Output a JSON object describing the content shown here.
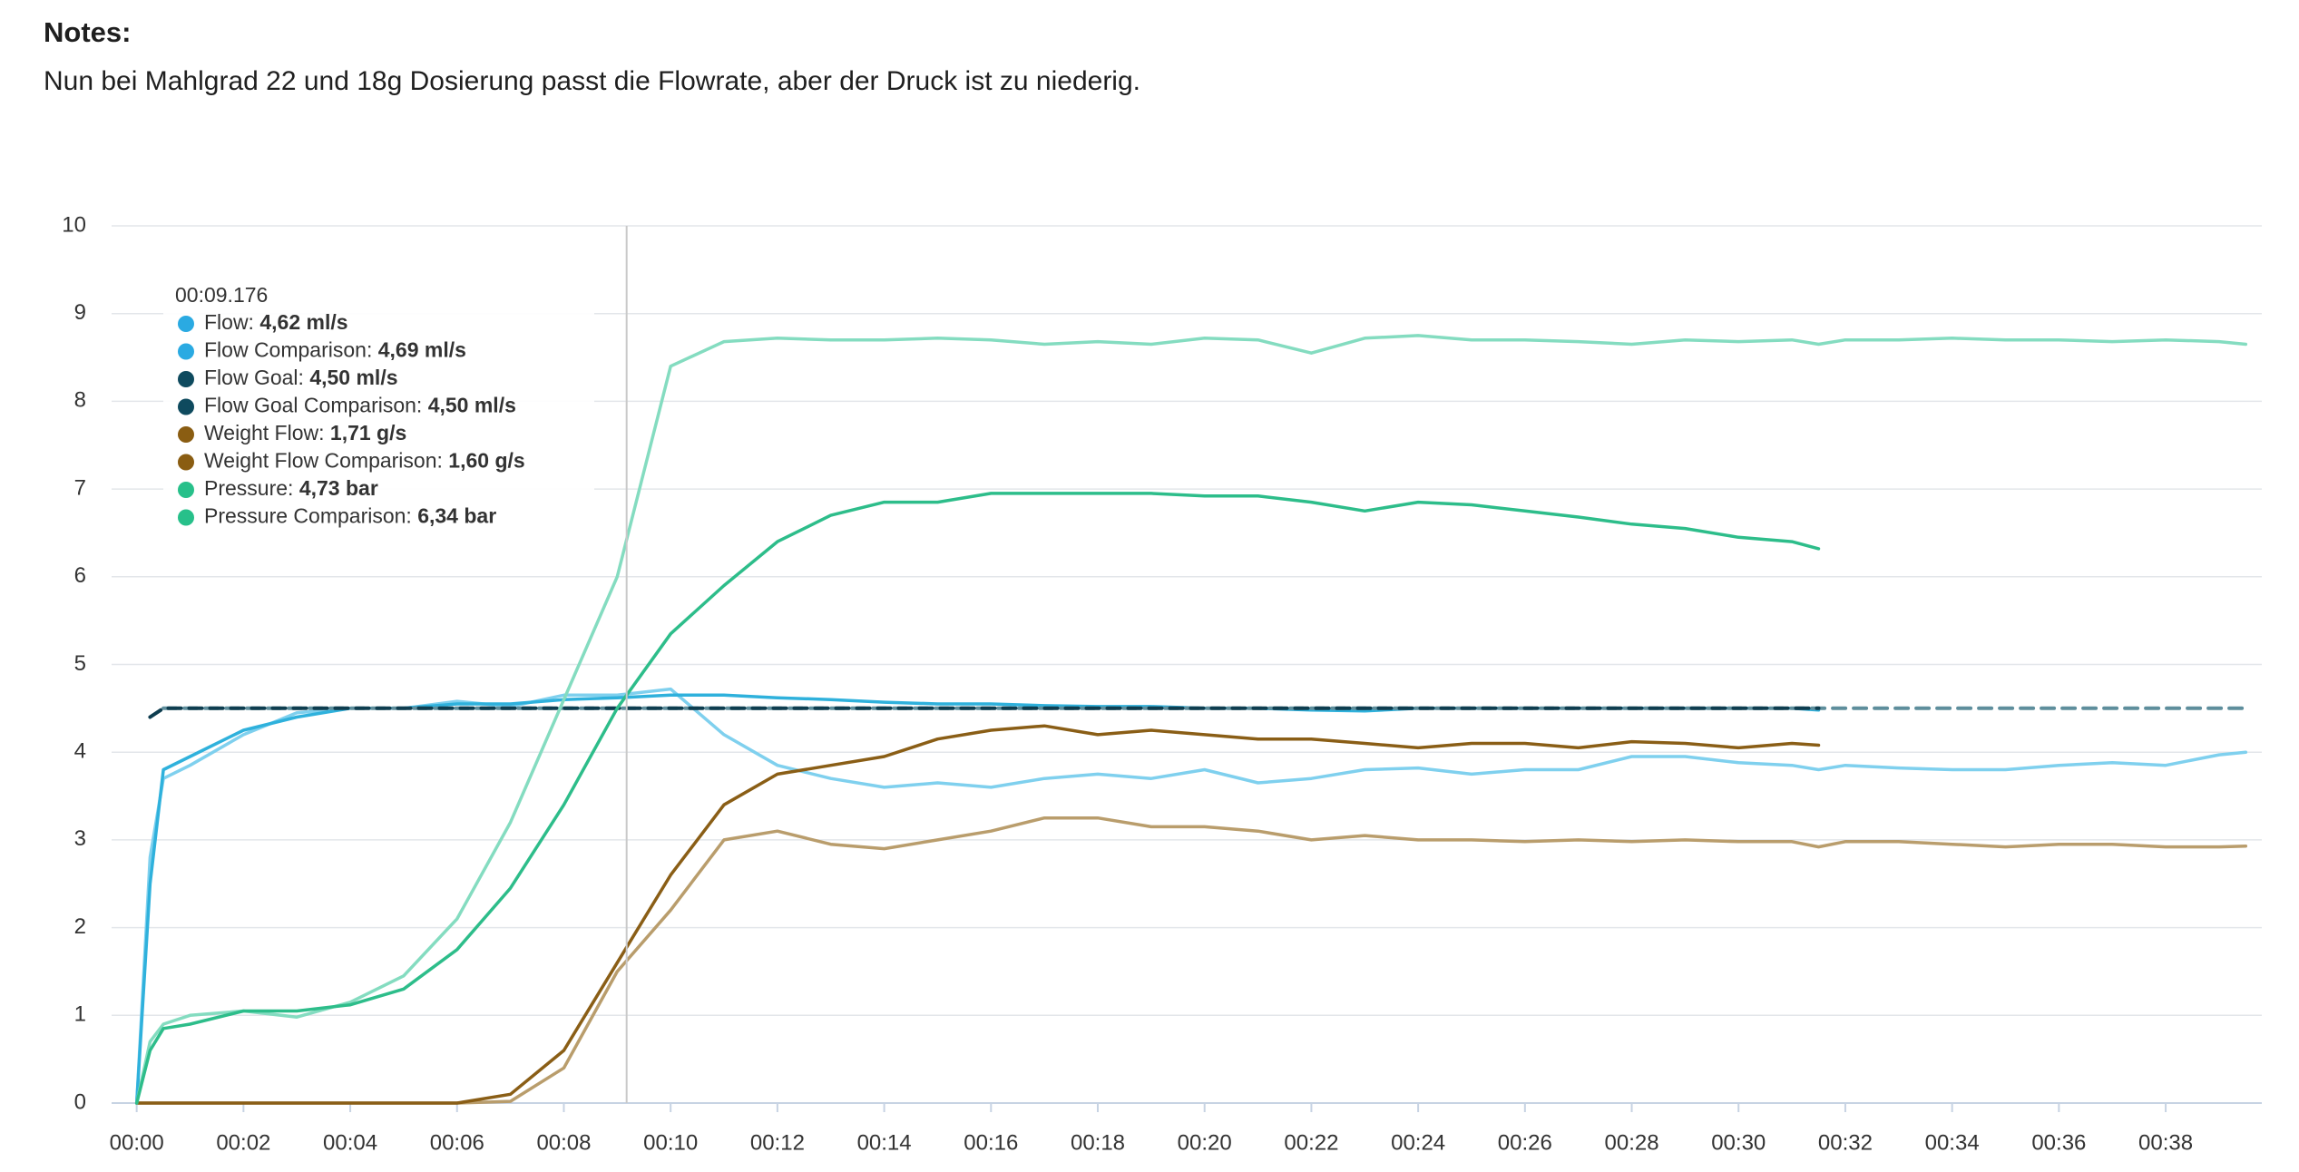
{
  "notes": {
    "title": "Notes:",
    "text": "Nun bei Mahlgrad 22 und 18g Dosierung passt die Flowrate, aber der Druck ist zu niederig."
  },
  "chart_data": {
    "type": "line",
    "x": [
      0,
      0.25,
      0.5,
      1,
      2,
      3,
      4,
      5,
      6,
      7,
      8,
      9,
      10,
      11,
      12,
      13,
      14,
      15,
      16,
      17,
      18,
      19,
      20,
      21,
      22,
      23,
      24,
      25,
      26,
      27,
      28,
      29,
      30,
      31,
      31.5,
      32,
      33,
      34,
      35,
      36,
      37,
      38,
      39,
      39.5
    ],
    "xlim": [
      -0.47,
      39.8
    ],
    "xticks": [
      {
        "value": 0,
        "label": "00:00"
      },
      {
        "value": 2,
        "label": "00:02"
      },
      {
        "value": 4,
        "label": "00:04"
      },
      {
        "value": 6,
        "label": "00:06"
      },
      {
        "value": 8,
        "label": "00:08"
      },
      {
        "value": 10,
        "label": "00:10"
      },
      {
        "value": 12,
        "label": "00:12"
      },
      {
        "value": 14,
        "label": "00:14"
      },
      {
        "value": 16,
        "label": "00:16"
      },
      {
        "value": 18,
        "label": "00:18"
      },
      {
        "value": 20,
        "label": "00:20"
      },
      {
        "value": 22,
        "label": "00:22"
      },
      {
        "value": 24,
        "label": "00:24"
      },
      {
        "value": 26,
        "label": "00:26"
      },
      {
        "value": 28,
        "label": "00:28"
      },
      {
        "value": 30,
        "label": "00:30"
      },
      {
        "value": 32,
        "label": "00:32"
      },
      {
        "value": 34,
        "label": "00:34"
      },
      {
        "value": 36,
        "label": "00:36"
      },
      {
        "value": 38,
        "label": "00:38"
      }
    ],
    "ylim": [
      0,
      10
    ],
    "yticks": [
      0,
      1,
      2,
      3,
      4,
      5,
      6,
      7,
      8,
      9,
      10
    ],
    "grid": true,
    "cursor": 9.176,
    "series": [
      {
        "name": "Flow Comparison",
        "color": "#7fd0ee",
        "dash": false,
        "values": [
          0,
          2.8,
          3.7,
          3.85,
          4.2,
          4.45,
          4.5,
          4.5,
          4.58,
          4.52,
          4.65,
          4.65,
          4.72,
          4.2,
          3.85,
          3.7,
          3.6,
          3.65,
          3.6,
          3.7,
          3.75,
          3.7,
          3.8,
          3.65,
          3.7,
          3.8,
          3.82,
          3.75,
          3.8,
          3.8,
          3.95,
          3.95,
          3.88,
          3.85,
          3.8,
          3.85,
          3.82,
          3.8,
          3.8,
          3.85,
          3.88,
          3.85,
          3.97,
          4.0
        ]
      },
      {
        "name": "Flow",
        "color": "#2fb1dc",
        "dash": false,
        "values": [
          0,
          2.5,
          3.8,
          3.95,
          4.25,
          4.4,
          4.5,
          4.5,
          4.55,
          4.55,
          4.6,
          4.62,
          4.65,
          4.65,
          4.62,
          4.6,
          4.57,
          4.55,
          4.55,
          4.53,
          4.52,
          4.52,
          4.5,
          4.5,
          4.48,
          4.47,
          4.5,
          4.5,
          4.5,
          4.5,
          4.5,
          4.5,
          4.5,
          4.5,
          4.48,
          null,
          null,
          null,
          null,
          null,
          null,
          null,
          null,
          null
        ]
      },
      {
        "name": "Flow Goal Comparison",
        "color": "#5e8e9c",
        "dash": true,
        "values": [
          null,
          null,
          4.5,
          4.5,
          4.5,
          4.5,
          4.5,
          4.5,
          4.5,
          4.5,
          4.5,
          4.5,
          4.5,
          4.5,
          4.5,
          4.5,
          4.5,
          4.5,
          4.5,
          4.5,
          4.5,
          4.5,
          4.5,
          4.5,
          4.5,
          4.5,
          4.5,
          4.5,
          4.5,
          4.5,
          4.5,
          4.5,
          4.5,
          4.5,
          4.5,
          4.5,
          4.5,
          4.5,
          4.5,
          4.5,
          4.5,
          4.5,
          4.5,
          4.5
        ]
      },
      {
        "name": "Flow Goal",
        "color": "#0e3d4f",
        "dash": true,
        "values": [
          null,
          4.4,
          4.5,
          4.5,
          4.5,
          4.5,
          4.5,
          4.5,
          4.5,
          4.5,
          4.5,
          4.5,
          4.5,
          4.5,
          4.5,
          4.5,
          4.5,
          4.5,
          4.5,
          4.5,
          4.5,
          4.5,
          4.5,
          4.5,
          4.5,
          4.5,
          4.5,
          4.5,
          4.5,
          4.5,
          4.5,
          4.5,
          4.5,
          4.5,
          4.5,
          null,
          null,
          null,
          null,
          null,
          null,
          null,
          null,
          null
        ]
      },
      {
        "name": "Weight Flow Comparison",
        "color": "#b99d6c",
        "dash": false,
        "values": [
          0,
          0,
          0,
          0,
          0,
          0,
          0,
          0,
          0,
          0.02,
          0.4,
          1.5,
          2.2,
          3.0,
          3.1,
          2.95,
          2.9,
          3.0,
          3.1,
          3.25,
          3.25,
          3.15,
          3.15,
          3.1,
          3.0,
          3.05,
          3.0,
          3.0,
          2.98,
          3.0,
          2.98,
          3.0,
          2.98,
          2.98,
          2.92,
          2.98,
          2.98,
          2.95,
          2.92,
          2.95,
          2.95,
          2.92,
          2.92,
          2.93
        ]
      },
      {
        "name": "Weight Flow",
        "color": "#8a5e16",
        "dash": false,
        "values": [
          0,
          0,
          0,
          0,
          0,
          0,
          0,
          0,
          0,
          0.1,
          0.6,
          1.6,
          2.6,
          3.4,
          3.75,
          3.85,
          3.95,
          4.15,
          4.25,
          4.3,
          4.2,
          4.25,
          4.2,
          4.15,
          4.15,
          4.1,
          4.05,
          4.1,
          4.1,
          4.05,
          4.12,
          4.1,
          4.05,
          4.1,
          4.08,
          null,
          null,
          null,
          null,
          null,
          null,
          null,
          null,
          null
        ]
      },
      {
        "name": "Pressure Comparison",
        "color": "#84dcc0",
        "dash": false,
        "values": [
          0,
          0.7,
          0.9,
          1.0,
          1.05,
          0.98,
          1.15,
          1.45,
          2.1,
          3.2,
          4.6,
          6.0,
          8.4,
          8.68,
          8.72,
          8.7,
          8.7,
          8.72,
          8.7,
          8.65,
          8.68,
          8.65,
          8.72,
          8.7,
          8.55,
          8.72,
          8.75,
          8.7,
          8.7,
          8.68,
          8.65,
          8.7,
          8.68,
          8.7,
          8.65,
          8.7,
          8.7,
          8.72,
          8.7,
          8.7,
          8.68,
          8.7,
          8.68,
          8.65
        ]
      },
      {
        "name": "Pressure",
        "color": "#2dbd8a",
        "dash": false,
        "values": [
          0,
          0.6,
          0.85,
          0.9,
          1.05,
          1.05,
          1.12,
          1.3,
          1.75,
          2.45,
          3.4,
          4.5,
          5.35,
          5.9,
          6.4,
          6.7,
          6.85,
          6.85,
          6.95,
          6.95,
          6.95,
          6.95,
          6.92,
          6.92,
          6.85,
          6.75,
          6.85,
          6.82,
          6.75,
          6.68,
          6.6,
          6.55,
          6.45,
          6.4,
          6.32,
          null,
          null,
          null,
          null,
          null,
          null,
          null,
          null,
          null
        ]
      }
    ],
    "tooltip": {
      "time": "00:09.176",
      "items": [
        {
          "label": "Flow:",
          "value": "4,62 ml/s",
          "color": "#2aaae2"
        },
        {
          "label": "Flow Comparison:",
          "value": "4,69 ml/s",
          "color": "#2aaae2"
        },
        {
          "label": "Flow Goal:",
          "value": "4,50 ml/s",
          "color": "#0e4a5e"
        },
        {
          "label": "Flow Goal Comparison:",
          "value": "4,50 ml/s",
          "color": "#0e4a5e"
        },
        {
          "label": "Weight Flow:",
          "value": "1,71 g/s",
          "color": "#8a5d12"
        },
        {
          "label": "Weight Flow Comparison:",
          "value": "1,60 g/s",
          "color": "#8a5d12"
        },
        {
          "label": "Pressure:",
          "value": "4,73 bar",
          "color": "#27c08a"
        },
        {
          "label": "Pressure Comparison:",
          "value": "6,34 bar",
          "color": "#27c08a"
        }
      ]
    }
  }
}
